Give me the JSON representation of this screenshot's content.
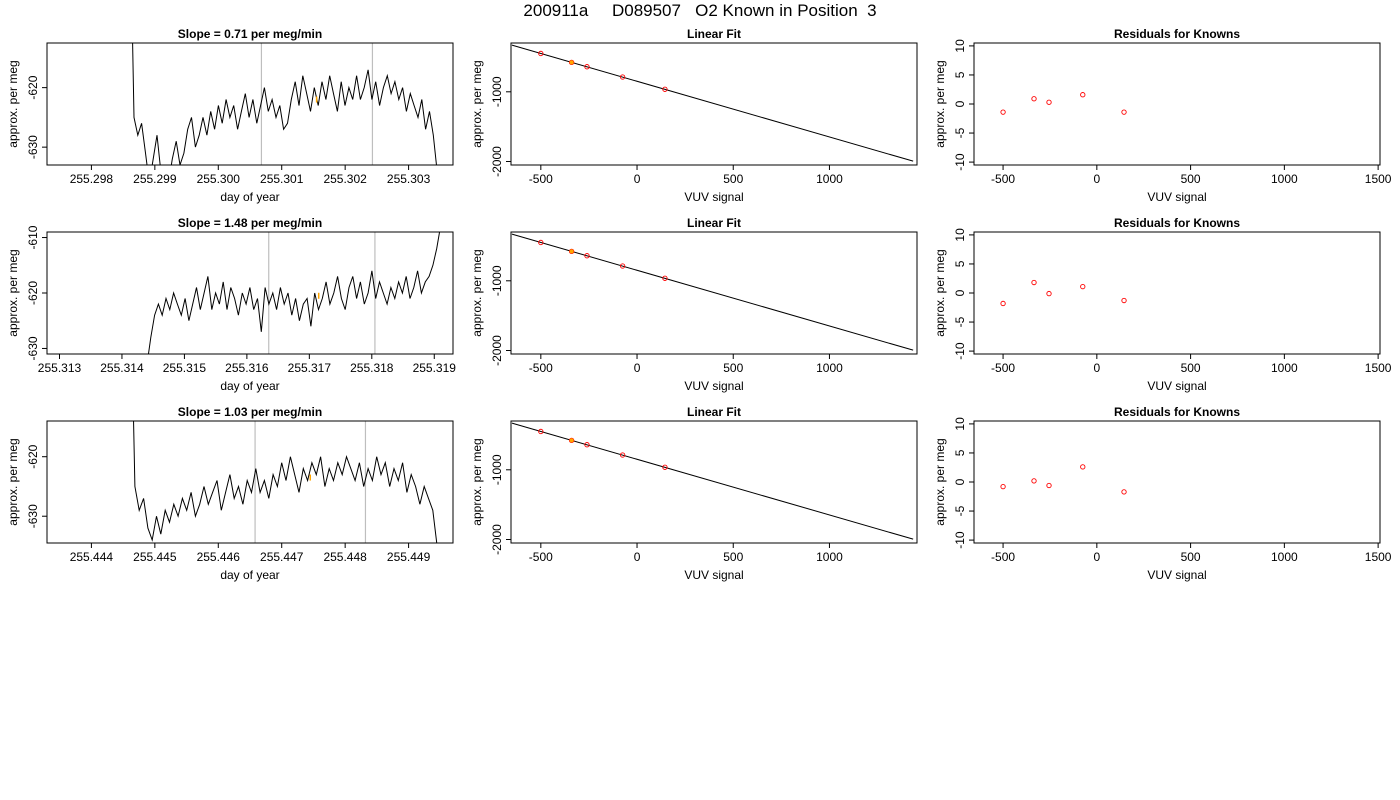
{
  "figure": {
    "title": "200911a     D089507   O2 Known in Position  3"
  },
  "colors": {
    "series_line": "#000000",
    "grey_vertical": "#bebebe",
    "marker_orange": "#ffa500",
    "marker_red": "#ff0000",
    "fit_line": "#000000"
  },
  "chart_data": [
    {
      "type": "line",
      "title": "Slope =  0.71  per meg/min",
      "xlabel": "day of year",
      "ylabel": "approx. per meg",
      "xlim": [
        255.2973,
        255.3037
      ],
      "ylim": [
        -633,
        -612.5
      ],
      "xticks": [
        "255.298",
        "255.299",
        "255.300",
        "255.301",
        "255.302",
        "255.303"
      ],
      "xtick_values": [
        255.298,
        255.299,
        255.3,
        255.301,
        255.302,
        255.303
      ],
      "yticks": [
        "-630",
        "-620"
      ],
      "ytick_values": [
        -630,
        -620
      ],
      "vlines": [
        255.30068,
        255.30243
      ],
      "highlight": {
        "x": 255.30155,
        "y": -622
      },
      "x_range": [
        255.29855,
        255.30345
      ],
      "trace": [
        -560,
        -590,
        -625,
        -628,
        -626,
        -631,
        -636,
        -632,
        -628,
        -634,
        -638,
        -636,
        -632,
        -629,
        -633,
        -631,
        -627,
        -625,
        -630,
        -628,
        -625,
        -628,
        -624,
        -627,
        -623,
        -626,
        -622,
        -625,
        -623,
        -627,
        -624,
        -621,
        -625,
        -622,
        -626,
        -623,
        -620,
        -624,
        -622,
        -625,
        -623,
        -627,
        -626,
        -622,
        -619,
        -623,
        -618,
        -621,
        -624,
        -620,
        -623,
        -619,
        -622,
        -618,
        -621,
        -624,
        -619,
        -623,
        -620,
        -622,
        -618,
        -622,
        -620,
        -617,
        -622,
        -619,
        -623,
        -620,
        -618,
        -621,
        -619,
        -622,
        -620,
        -624,
        -621,
        -623,
        -625,
        -622,
        -627,
        -624,
        -628,
        -634
      ]
    },
    {
      "type": "line",
      "title": "Slope =  1.48  per meg/min",
      "xlabel": "day of year",
      "ylabel": "approx. per meg",
      "xlim": [
        255.3128,
        255.3193
      ],
      "ylim": [
        -631,
        -609
      ],
      "xticks": [
        "255.313",
        "255.314",
        "255.315",
        "255.316",
        "255.317",
        "255.318",
        "255.319"
      ],
      "xtick_values": [
        255.313,
        255.314,
        255.315,
        255.316,
        255.317,
        255.318,
        255.319
      ],
      "yticks": [
        "-630",
        "-620",
        "-610"
      ],
      "ytick_values": [
        -630,
        -620,
        -610
      ],
      "vlines": [
        255.31635,
        255.31805
      ],
      "highlight": {
        "x": 255.31715,
        "y": -620.5
      },
      "x_range": [
        255.3144,
        255.3191
      ],
      "trace": [
        -633,
        -628,
        -624,
        -622,
        -624,
        -621,
        -623,
        -620,
        -622,
        -624,
        -621,
        -625,
        -622,
        -619,
        -623,
        -620,
        -617,
        -623,
        -620,
        -622,
        -618,
        -623,
        -619,
        -621,
        -624,
        -620,
        -622,
        -619,
        -623,
        -621,
        -627,
        -619,
        -622,
        -620,
        -623,
        -619,
        -622,
        -620,
        -624,
        -621,
        -625,
        -622,
        -621,
        -626,
        -620,
        -623,
        -621,
        -618,
        -622,
        -620,
        -617,
        -621,
        -623,
        -619,
        -617,
        -621,
        -618,
        -622,
        -620,
        -616,
        -621,
        -618,
        -620,
        -622,
        -619,
        -621,
        -618,
        -620,
        -617,
        -621,
        -619,
        -616,
        -620,
        -618,
        -617,
        -615,
        -612,
        -608
      ]
    },
    {
      "type": "line",
      "title": "Slope =  1.03  per meg/min",
      "xlabel": "day of year",
      "ylabel": "approx. per meg",
      "xlim": [
        255.4433,
        255.4497
      ],
      "ylim": [
        -634.5,
        -614
      ],
      "xticks": [
        "255.444",
        "255.445",
        "255.446",
        "255.447",
        "255.448",
        "255.449"
      ],
      "xtick_values": [
        255.444,
        255.445,
        255.446,
        255.447,
        255.448,
        255.449
      ],
      "yticks": [
        "-630",
        "-620"
      ],
      "ytick_values": [
        -630,
        -620
      ],
      "vlines": [
        255.44658,
        255.44832
      ],
      "highlight": {
        "x": 255.44745,
        "y": -623.5
      },
      "x_range": [
        255.44455,
        255.44945
      ],
      "trace": [
        -560,
        -590,
        -625,
        -629,
        -627,
        -632,
        -634,
        -630,
        -633,
        -629,
        -631,
        -628,
        -630,
        -627,
        -629,
        -626,
        -630,
        -628,
        -625,
        -628,
        -626,
        -624,
        -629,
        -626,
        -623,
        -627,
        -625,
        -628,
        -624,
        -626,
        -622,
        -626,
        -624,
        -627,
        -623,
        -625,
        -621,
        -624,
        -620,
        -623,
        -626,
        -622,
        -624,
        -621,
        -623,
        -620,
        -625,
        -622,
        -624,
        -621,
        -623,
        -620,
        -622,
        -624,
        -621,
        -625,
        -622,
        -624,
        -620,
        -623,
        -621,
        -625,
        -622,
        -624,
        -621,
        -626,
        -623,
        -625,
        -628,
        -625,
        -627,
        -629,
        -635
      ]
    },
    {
      "type": "scatter",
      "title": "Linear Fit",
      "xlabel": "VUV signal",
      "ylabel": "approx. per meg",
      "xlim": [
        -655,
        1455
      ],
      "ylim": [
        -2050,
        -300
      ],
      "xticks": [
        "-500",
        "0",
        "500",
        "1000",
        "1500"
      ],
      "xtick_values": [
        -500,
        0,
        500,
        1000,
        1500
      ],
      "yticks": [
        "-1000",
        "-2000"
      ],
      "ytick_values": [
        -1000,
        -2000
      ],
      "fit_line": {
        "x": [
          -650,
          1435
        ],
        "y": [
          -330,
          -1995
        ]
      },
      "points": {
        "x": [
          -500,
          -340,
          -260,
          -75,
          145
        ],
        "y": [
          -450,
          -578,
          -640,
          -788,
          -964
        ]
      },
      "highlight_index": 1
    },
    {
      "type": "scatter",
      "title": "Linear Fit",
      "xlabel": "VUV signal",
      "ylabel": "approx. per meg",
      "xlim": [
        -655,
        1455
      ],
      "ylim": [
        -2050,
        -300
      ],
      "xticks": [
        "-500",
        "0",
        "500",
        "1000",
        "1500"
      ],
      "xtick_values": [
        -500,
        0,
        500,
        1000,
        1500
      ],
      "yticks": [
        "-1000",
        "-2000"
      ],
      "ytick_values": [
        -1000,
        -2000
      ],
      "fit_line": {
        "x": [
          -650,
          1435
        ],
        "y": [
          -330,
          -1995
        ]
      },
      "points": {
        "x": [
          -500,
          -340,
          -260,
          -75,
          145
        ],
        "y": [
          -450,
          -578,
          -640,
          -788,
          -964
        ]
      },
      "highlight_index": 1
    },
    {
      "type": "scatter",
      "title": "Linear Fit",
      "xlabel": "VUV signal",
      "ylabel": "approx. per meg",
      "xlim": [
        -655,
        1455
      ],
      "ylim": [
        -2050,
        -300
      ],
      "xticks": [
        "-500",
        "0",
        "500",
        "1000",
        "1500"
      ],
      "xtick_values": [
        -500,
        0,
        500,
        1000,
        1500
      ],
      "yticks": [
        "-1000",
        "-2000"
      ],
      "ytick_values": [
        -1000,
        -2000
      ],
      "fit_line": {
        "x": [
          -650,
          1435
        ],
        "y": [
          -330,
          -1995
        ]
      },
      "points": {
        "x": [
          -500,
          -340,
          -260,
          -75,
          145
        ],
        "y": [
          -450,
          -578,
          -640,
          -788,
          -964
        ]
      },
      "highlight_index": 1
    },
    {
      "type": "scatter",
      "title": "Residuals for Knowns",
      "xlabel": "VUV signal",
      "ylabel": "approx. per meg",
      "xlim": [
        -655,
        1510
      ],
      "ylim": [
        -10.5,
        10.5
      ],
      "xticks": [
        "-500",
        "0",
        "500",
        "1000",
        "1500"
      ],
      "xtick_values": [
        -500,
        0,
        500,
        1000,
        1500
      ],
      "yticks": [
        "-10",
        "-5",
        "0",
        "5",
        "10"
      ],
      "ytick_values": [
        -10,
        -5,
        0,
        5,
        10
      ],
      "points": {
        "x": [
          -500,
          -335,
          -255,
          -75,
          145
        ],
        "y": [
          -1.4,
          0.9,
          0.3,
          1.6,
          -1.4
        ]
      }
    },
    {
      "type": "scatter",
      "title": "Residuals for Knowns",
      "xlabel": "VUV signal",
      "ylabel": "approx. per meg",
      "xlim": [
        -655,
        1510
      ],
      "ylim": [
        -10.5,
        10.5
      ],
      "xticks": [
        "-500",
        "0",
        "500",
        "1000",
        "1500"
      ],
      "xtick_values": [
        -500,
        0,
        500,
        1000,
        1500
      ],
      "yticks": [
        "-10",
        "-5",
        "0",
        "5",
        "10"
      ],
      "ytick_values": [
        -10,
        -5,
        0,
        5,
        10
      ],
      "points": {
        "x": [
          -500,
          -335,
          -255,
          -75,
          145
        ],
        "y": [
          -1.8,
          1.8,
          -0.1,
          1.1,
          -1.3
        ]
      }
    },
    {
      "type": "scatter",
      "title": "Residuals for Knowns",
      "xlabel": "VUV signal",
      "ylabel": "approx. per meg",
      "xlim": [
        -655,
        1510
      ],
      "ylim": [
        -10.5,
        10.5
      ],
      "xticks": [
        "-500",
        "0",
        "500",
        "1000",
        "1500"
      ],
      "xtick_values": [
        -500,
        0,
        500,
        1000,
        1500
      ],
      "yticks": [
        "-10",
        "-5",
        "0",
        "5",
        "10"
      ],
      "ytick_values": [
        -10,
        -5,
        0,
        5,
        10
      ],
      "points": {
        "x": [
          -500,
          -335,
          -255,
          -75,
          145
        ],
        "y": [
          -0.8,
          0.2,
          -0.6,
          2.6,
          -1.7
        ]
      }
    }
  ]
}
